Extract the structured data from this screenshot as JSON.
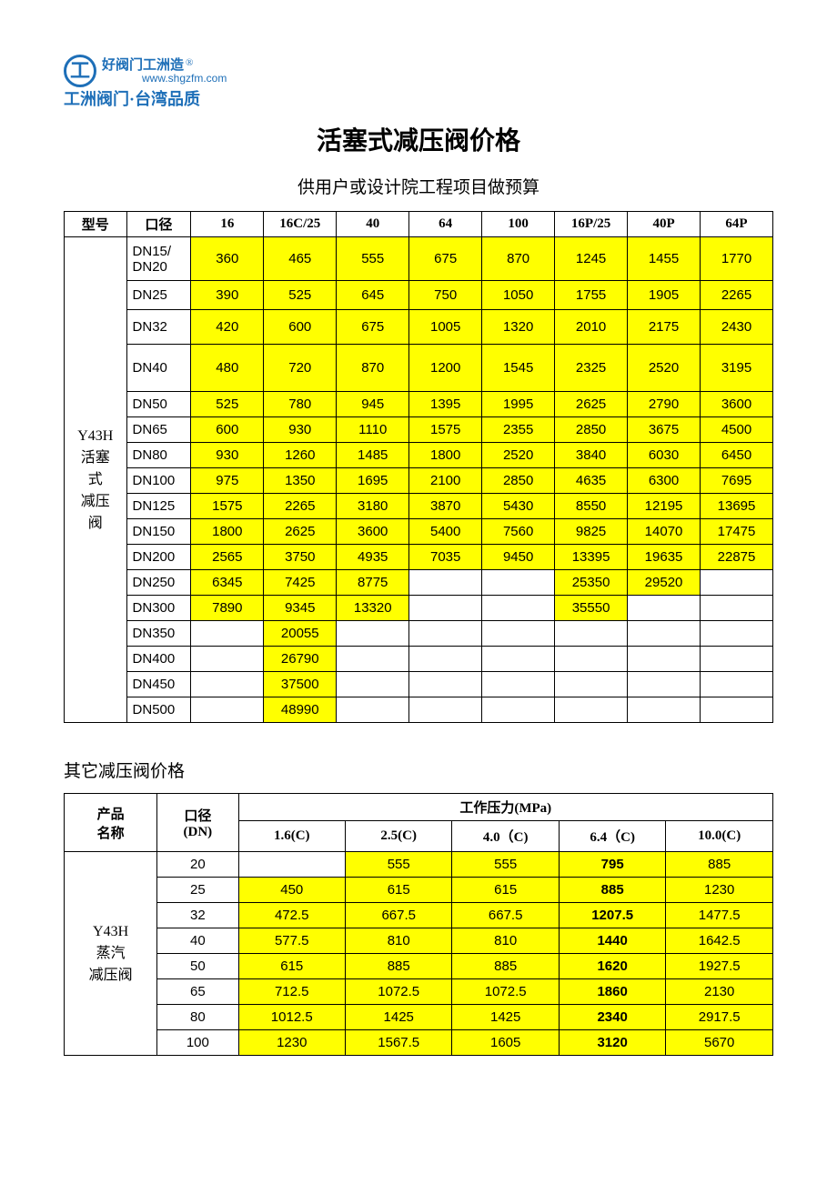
{
  "logo": {
    "mark": "工",
    "line1": "好阀门工洲造",
    "reg": "®",
    "url": "www.shgzfm.com",
    "line2": "工洲阀门·台湾品质"
  },
  "title": "活塞式减压阀价格",
  "subtitle": "供用户或设计院工程项目做预算",
  "table1": {
    "headers": [
      "型号",
      "口径",
      "16",
      "16C/25",
      "40",
      "64",
      "100",
      "16P/25",
      "40P",
      "64P"
    ],
    "model_label": "Y43H\n活塞\n式\n减压\n阀",
    "rows": [
      {
        "dn": "DN15/\nDN20",
        "v": [
          "360",
          "465",
          "555",
          "675",
          "870",
          "1245",
          "1455",
          "1770"
        ],
        "cls": "r-dn15"
      },
      {
        "dn": "DN25",
        "v": [
          "390",
          "525",
          "645",
          "750",
          "1050",
          "1755",
          "1905",
          "2265"
        ],
        "cls": "r-dn25"
      },
      {
        "dn": "DN32",
        "v": [
          "420",
          "600",
          "675",
          "1005",
          "1320",
          "2010",
          "2175",
          "2430"
        ],
        "cls": "r-dn32"
      },
      {
        "dn": "DN40",
        "v": [
          "480",
          "720",
          "870",
          "1200",
          "1545",
          "2325",
          "2520",
          "3195"
        ],
        "cls": "r-dn40"
      },
      {
        "dn": "DN50",
        "v": [
          "525",
          "780",
          "945",
          "1395",
          "1995",
          "2625",
          "2790",
          "3600"
        ]
      },
      {
        "dn": "DN65",
        "v": [
          "600",
          "930",
          "1110",
          "1575",
          "2355",
          "2850",
          "3675",
          "4500"
        ]
      },
      {
        "dn": "DN80",
        "v": [
          "930",
          "1260",
          "1485",
          "1800",
          "2520",
          "3840",
          "6030",
          "6450"
        ]
      },
      {
        "dn": "DN100",
        "v": [
          "975",
          "1350",
          "1695",
          "2100",
          "2850",
          "4635",
          "6300",
          "7695"
        ]
      },
      {
        "dn": "DN125",
        "v": [
          "1575",
          "2265",
          "3180",
          "3870",
          "5430",
          "8550",
          "12195",
          "13695"
        ]
      },
      {
        "dn": "DN150",
        "v": [
          "1800",
          "2625",
          "3600",
          "5400",
          "7560",
          "9825",
          "14070",
          "17475"
        ]
      },
      {
        "dn": "DN200",
        "v": [
          "2565",
          "3750",
          "4935",
          "7035",
          "9450",
          "13395",
          "19635",
          "22875"
        ]
      },
      {
        "dn": "DN250",
        "v": [
          "6345",
          "7425",
          "8775",
          "",
          "",
          "25350",
          "29520",
          ""
        ]
      },
      {
        "dn": "DN300",
        "v": [
          "7890",
          "9345",
          "13320",
          "",
          "",
          "35550",
          "",
          ""
        ]
      },
      {
        "dn": "DN350",
        "v": [
          "",
          "20055",
          "",
          "",
          "",
          "",
          "",
          ""
        ]
      },
      {
        "dn": "DN400",
        "v": [
          "",
          "26790",
          "",
          "",
          "",
          "",
          "",
          ""
        ]
      },
      {
        "dn": "DN450",
        "v": [
          "",
          "37500",
          "",
          "",
          "",
          "",
          "",
          ""
        ]
      },
      {
        "dn": "DN500",
        "v": [
          "",
          "48990",
          "",
          "",
          "",
          "",
          "",
          ""
        ]
      }
    ]
  },
  "section2_title": "其它减压阀价格",
  "table2": {
    "hdr_name": "产品\n名称",
    "hdr_dn": "口径\n(DN)",
    "hdr_pressure": "工作压力(MPa)",
    "pressure_cols": [
      "1.6(C)",
      "2.5(C)",
      "4.0（C)",
      "6.4（C)",
      "10.0(C)"
    ],
    "model_label": "Y43H\n蒸汽\n减压阀",
    "rows": [
      {
        "dn": "20",
        "v": [
          "",
          "555",
          "555",
          "795",
          "885"
        ]
      },
      {
        "dn": "25",
        "v": [
          "450",
          "615",
          "615",
          "885",
          "1230"
        ]
      },
      {
        "dn": "32",
        "v": [
          "472.5",
          "667.5",
          "667.5",
          "1207.5",
          "1477.5"
        ]
      },
      {
        "dn": "40",
        "v": [
          "577.5",
          "810",
          "810",
          "1440",
          "1642.5"
        ]
      },
      {
        "dn": "50",
        "v": [
          "615",
          "885",
          "885",
          "1620",
          "1927.5"
        ]
      },
      {
        "dn": "65",
        "v": [
          "712.5",
          "1072.5",
          "1072.5",
          "1860",
          "2130"
        ]
      },
      {
        "dn": "80",
        "v": [
          "1012.5",
          "1425",
          "1425",
          "2340",
          "2917.5"
        ]
      },
      {
        "dn": "100",
        "v": [
          "1230",
          "1567.5",
          "1605",
          "3120",
          "5670"
        ]
      }
    ],
    "bold_col_index": 3
  },
  "colors": {
    "highlight": "#ffff00",
    "border": "#000000",
    "logo": "#1e6fb8",
    "background": "#ffffff"
  }
}
